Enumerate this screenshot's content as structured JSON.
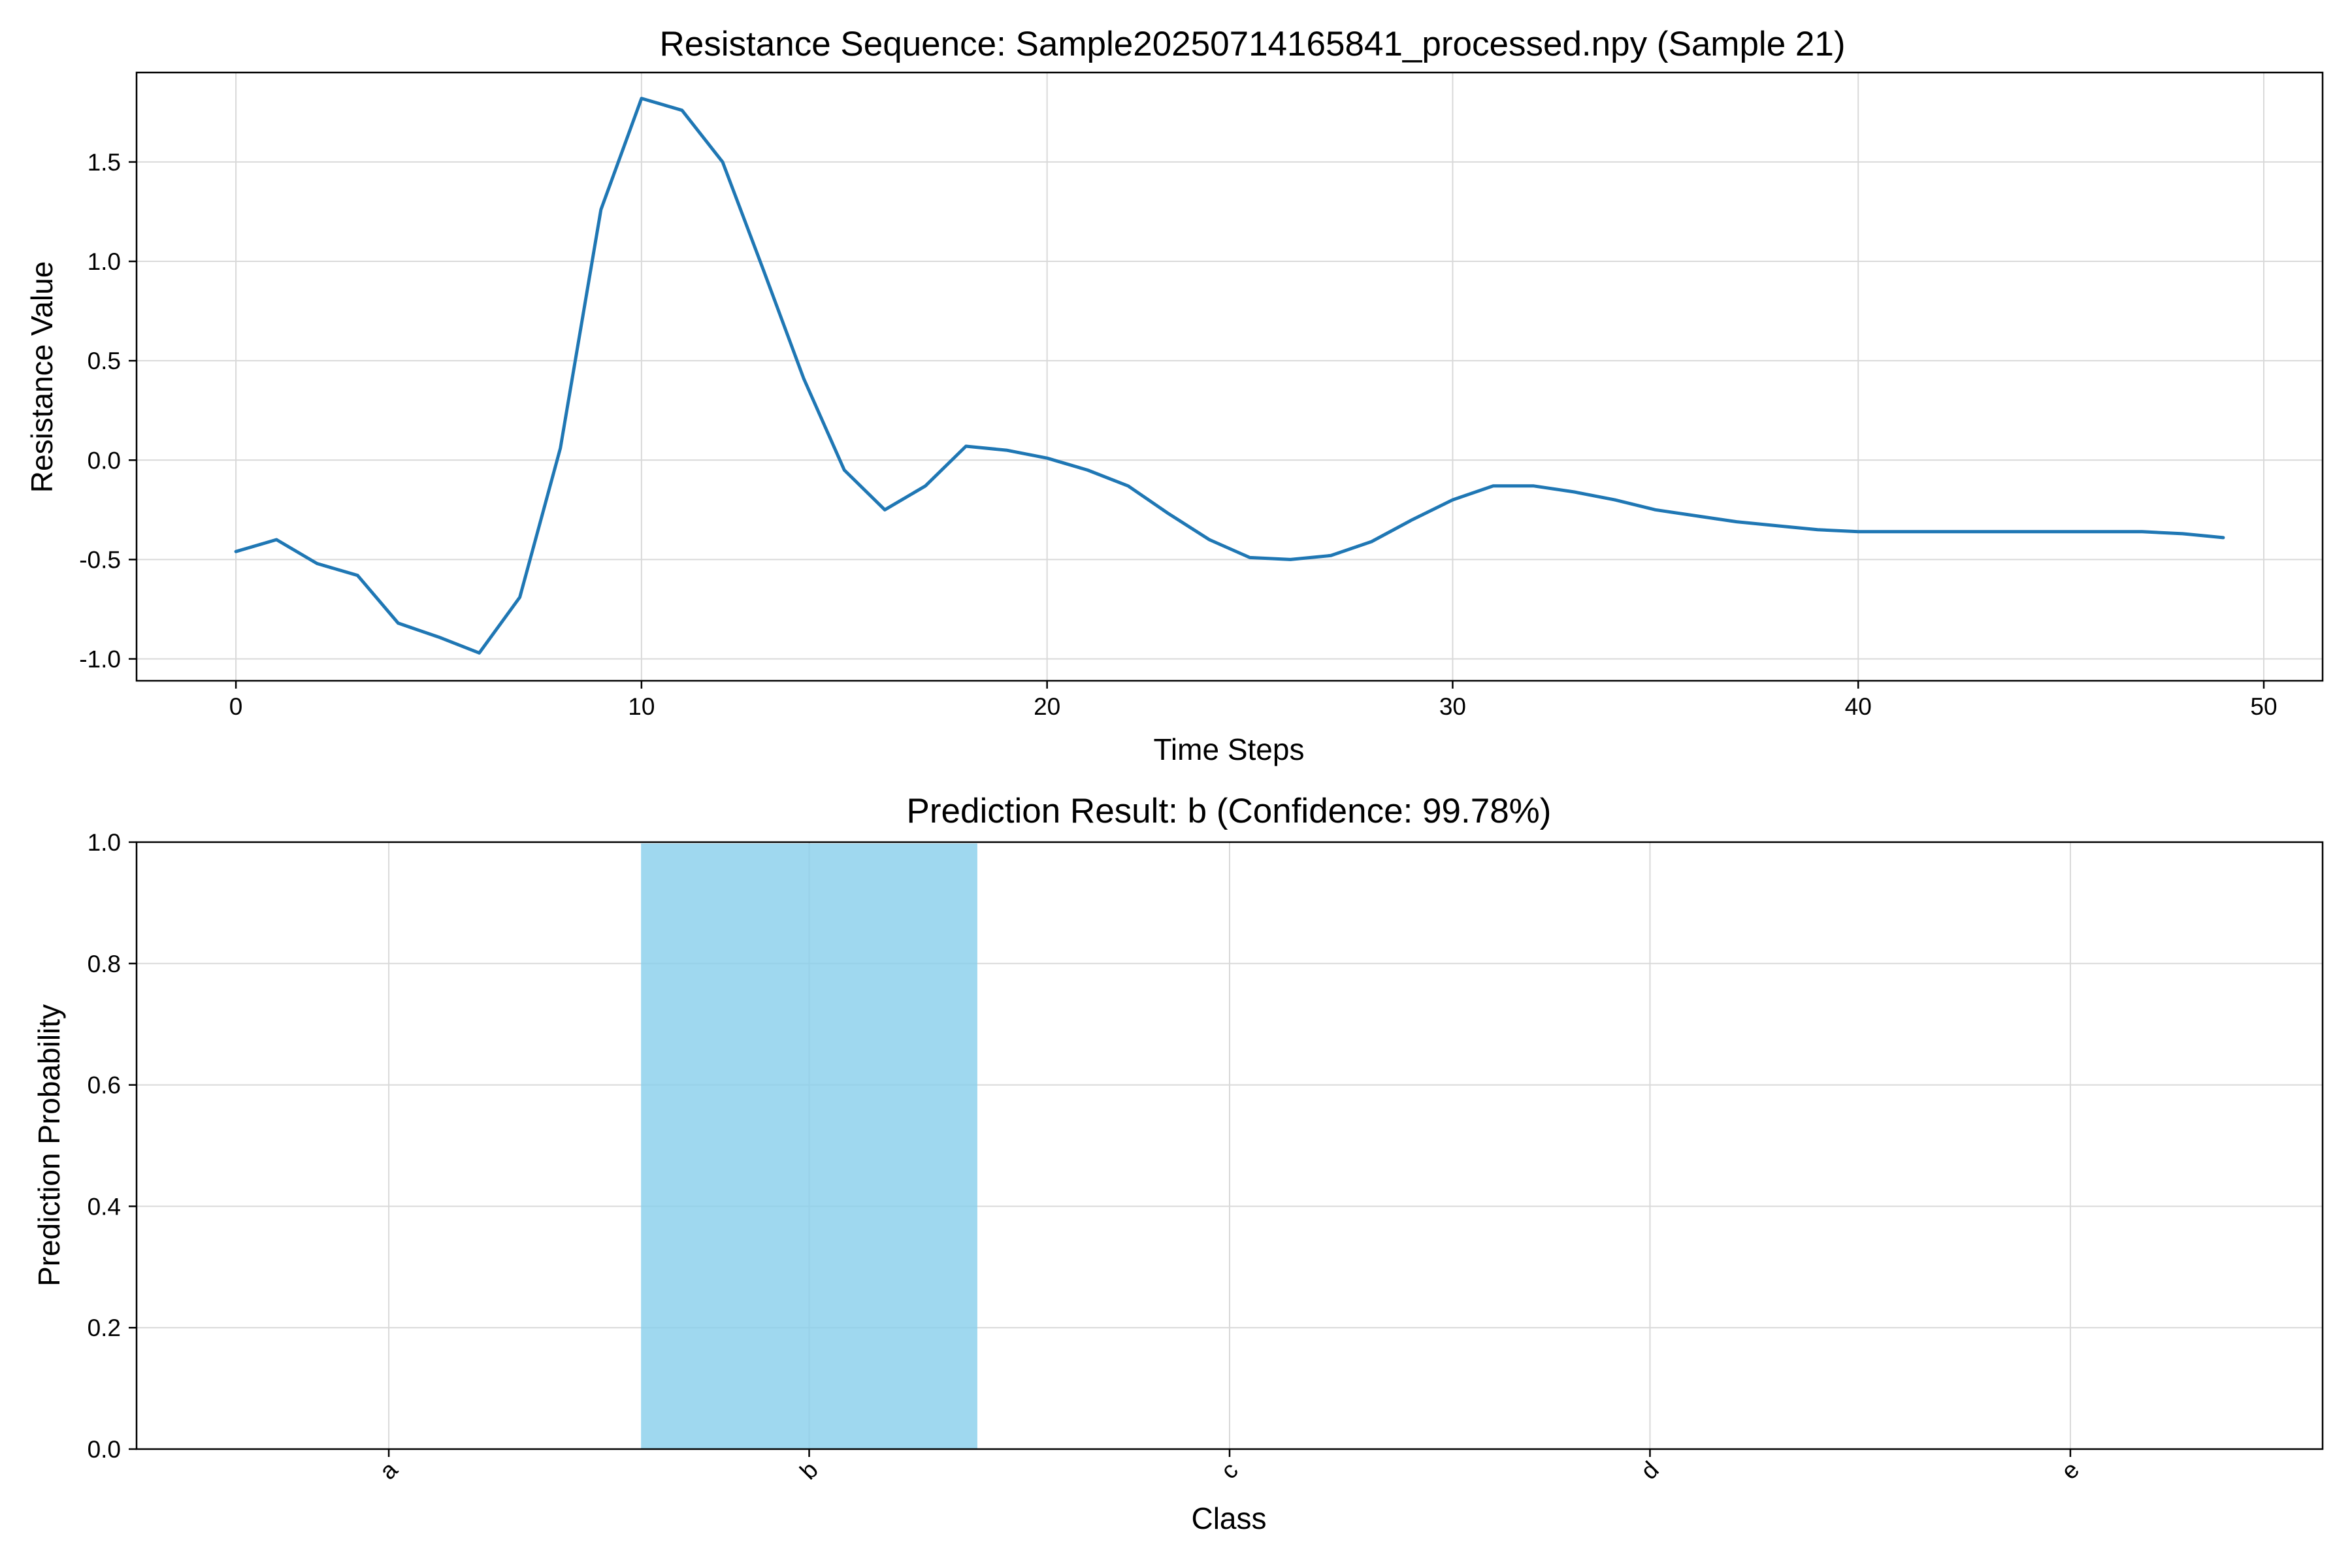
{
  "chart_data": [
    {
      "type": "line",
      "title": "Resistance Sequence: Sample20250714165841_processed.npy (Sample 21)",
      "xlabel": "Time Steps",
      "ylabel": "Resistance Value",
      "xlim": [
        -2.45,
        51.45
      ],
      "ylim": [
        -1.11,
        1.95
      ],
      "xticks": [
        0,
        10,
        20,
        30,
        40,
        50
      ],
      "xtick_labels": [
        "0",
        "10",
        "20",
        "30",
        "40",
        "50"
      ],
      "yticks": [
        -1.0,
        -0.5,
        0.0,
        0.5,
        1.0,
        1.5
      ],
      "ytick_labels": [
        "-1.0",
        "-0.5",
        "0.0",
        "0.5",
        "1.0",
        "1.5"
      ],
      "grid": true,
      "color": "#1f77b4",
      "x": [
        0,
        1,
        2,
        3,
        4,
        5,
        6,
        7,
        8,
        9,
        10,
        11,
        12,
        13,
        14,
        15,
        16,
        17,
        18,
        19,
        20,
        21,
        22,
        23,
        24,
        25,
        26,
        27,
        28,
        29,
        30,
        31,
        32,
        33,
        34,
        35,
        36,
        37,
        38,
        39,
        40,
        41,
        42,
        43,
        44,
        45,
        46,
        47,
        48,
        49
      ],
      "y": [
        -0.46,
        -0.4,
        -0.52,
        -0.58,
        -0.82,
        -0.89,
        -0.97,
        -0.69,
        0.06,
        1.26,
        1.82,
        1.76,
        1.5,
        0.96,
        0.41,
        -0.05,
        -0.25,
        -0.13,
        0.07,
        0.05,
        0.01,
        -0.05,
        -0.13,
        -0.27,
        -0.4,
        -0.49,
        -0.5,
        -0.48,
        -0.41,
        -0.3,
        -0.2,
        -0.13,
        -0.13,
        -0.16,
        -0.2,
        -0.25,
        -0.28,
        -0.31,
        -0.33,
        -0.35,
        -0.36,
        -0.36,
        -0.36,
        -0.36,
        -0.36,
        -0.36,
        -0.36,
        -0.36,
        -0.37,
        -0.39
      ]
    },
    {
      "type": "bar",
      "title": "Prediction Result: b (Confidence: 99.78%)",
      "xlabel": "Class",
      "ylabel": "Prediction Probability",
      "categories": [
        "a",
        "b",
        "c",
        "d",
        "e"
      ],
      "values": [
        0.0,
        0.9978,
        0.0,
        0.0,
        0.0
      ],
      "ylim": [
        0,
        1
      ],
      "yticks": [
        0.0,
        0.2,
        0.4,
        0.6,
        0.8,
        1.0
      ],
      "ytick_labels": [
        "0.0",
        "0.2",
        "0.4",
        "0.6",
        "0.8",
        "1.0"
      ],
      "grid": true,
      "color": "#87ceeb",
      "tick_rotation": -45
    }
  ]
}
